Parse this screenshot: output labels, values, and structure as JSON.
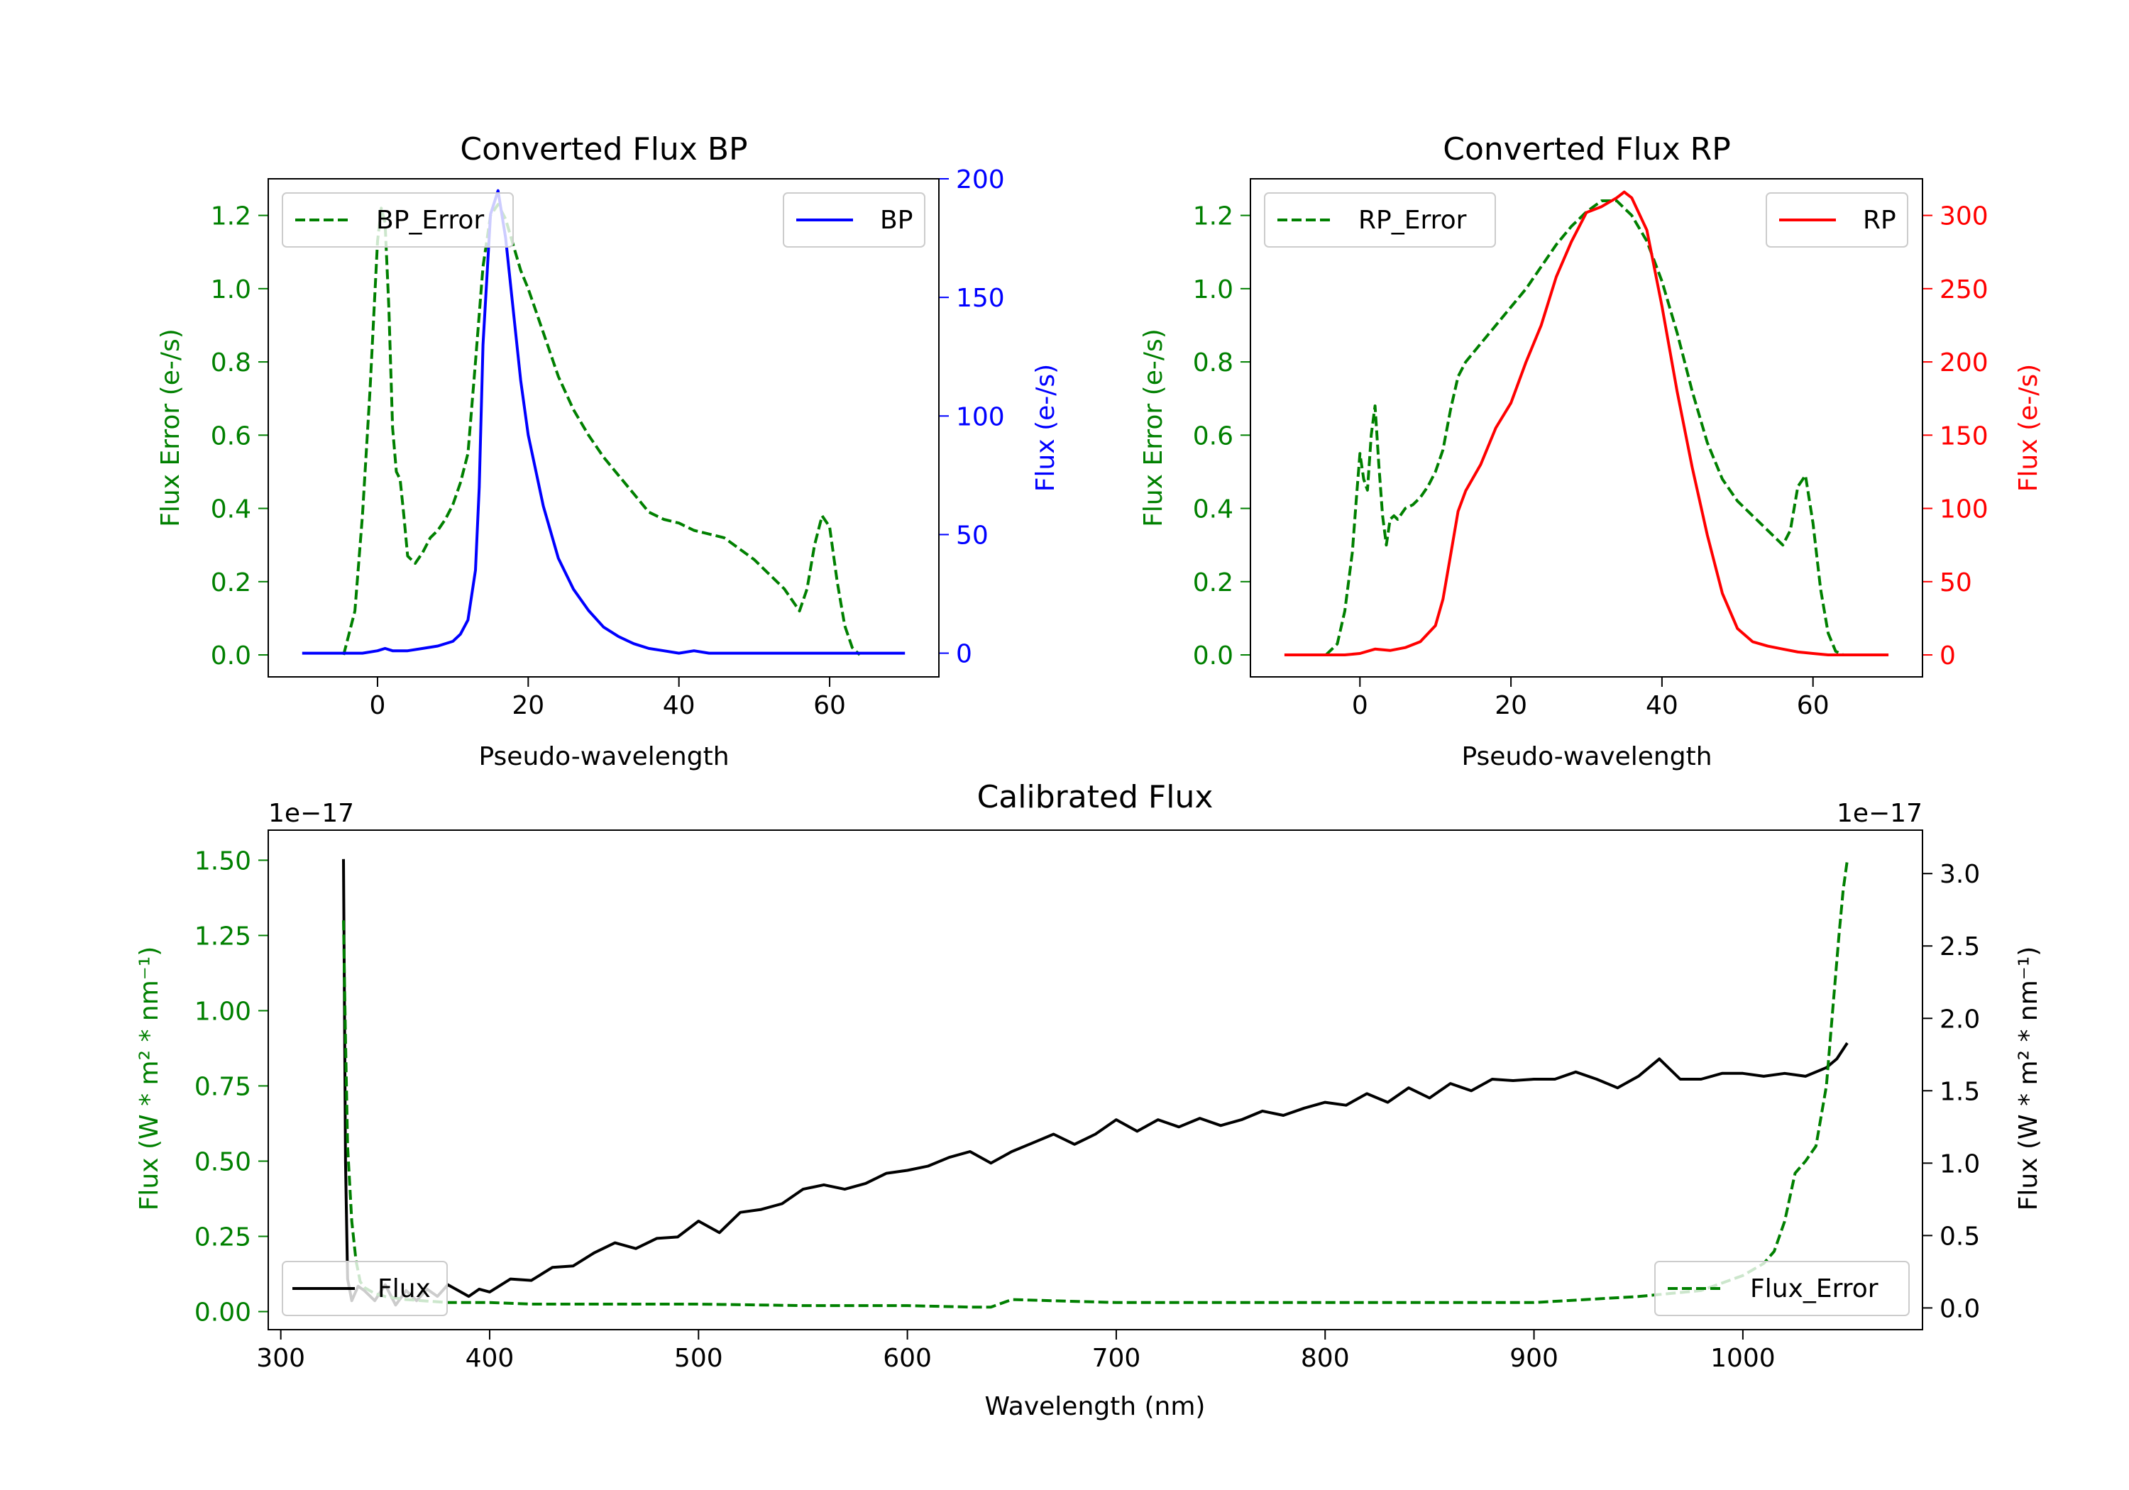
{
  "colors": {
    "green": "#008000",
    "blue": "#0000ff",
    "red": "#ff0000",
    "black": "#000000"
  },
  "chart_data": [
    {
      "type": "line",
      "title": "Converted Flux BP",
      "xlabel": "Pseudo-wavelength",
      "ylabel_left": "Flux Error (e-/s)",
      "ylabel_right": "Flux (e-/s)",
      "xlim": [
        -14.5,
        74.5
      ],
      "ylim_left": [
        -0.06,
        1.3
      ],
      "ylim_right": [
        -10,
        200
      ],
      "xticks": [
        0,
        20,
        40,
        60
      ],
      "yticks_left": [
        0.0,
        0.2,
        0.4,
        0.6,
        0.8,
        1.0,
        1.2
      ],
      "yticks_right": [
        0,
        50,
        100,
        150,
        200
      ],
      "grid": false,
      "series": [
        {
          "name": "BP_Error",
          "axis": "left",
          "style": "dashed",
          "color": "#008000",
          "legend_loc": "upper left",
          "x": [
            -4.5,
            -3,
            -2,
            -1,
            0,
            0.5,
            1,
            1.5,
            2,
            2.5,
            3,
            3.5,
            4,
            5,
            6,
            7,
            8,
            9,
            10,
            11,
            12,
            13,
            14,
            15,
            16,
            17,
            18,
            19,
            20,
            22,
            24,
            26,
            28,
            30,
            32,
            34,
            36,
            38,
            40,
            42,
            44,
            46,
            48,
            50,
            52,
            54,
            56,
            57,
            58,
            59,
            60,
            61,
            62,
            63,
            64
          ],
          "y": [
            0.0,
            0.12,
            0.38,
            0.72,
            1.13,
            1.22,
            1.18,
            0.95,
            0.62,
            0.5,
            0.48,
            0.38,
            0.27,
            0.25,
            0.28,
            0.32,
            0.34,
            0.37,
            0.41,
            0.47,
            0.55,
            0.8,
            1.06,
            1.2,
            1.23,
            1.19,
            1.12,
            1.05,
            1.0,
            0.88,
            0.76,
            0.67,
            0.6,
            0.54,
            0.49,
            0.44,
            0.39,
            0.37,
            0.36,
            0.34,
            0.33,
            0.32,
            0.29,
            0.26,
            0.22,
            0.18,
            0.12,
            0.18,
            0.3,
            0.38,
            0.35,
            0.2,
            0.08,
            0.02,
            0.0
          ]
        },
        {
          "name": "BP",
          "axis": "right",
          "style": "solid",
          "color": "#0000ff",
          "legend_loc": "upper right",
          "x": [
            -10,
            -5,
            -2,
            0,
            1,
            2,
            4,
            6,
            8,
            10,
            11,
            12,
            13,
            13.5,
            14,
            15,
            16,
            17,
            18,
            19,
            20,
            22,
            24,
            26,
            28,
            30,
            32,
            34,
            36,
            38,
            40,
            42,
            44,
            46,
            48,
            50,
            55,
            60,
            65,
            70
          ],
          "y": [
            0,
            0,
            0,
            1,
            2,
            1,
            1,
            2,
            3,
            5,
            8,
            14,
            35,
            70,
            130,
            185,
            195,
            175,
            145,
            115,
            92,
            62,
            40,
            27,
            18,
            11,
            7,
            4,
            2,
            1,
            0,
            1,
            0,
            0,
            0,
            0,
            0,
            0,
            0,
            0
          ]
        }
      ]
    },
    {
      "type": "line",
      "title": "Converted Flux RP",
      "xlabel": "Pseudo-wavelength",
      "ylabel_left": "Flux Error (e-/s)",
      "ylabel_right": "Flux (e-/s)",
      "xlim": [
        -14.5,
        74.5
      ],
      "ylim_left": [
        -0.06,
        1.3
      ],
      "ylim_right": [
        -15,
        325
      ],
      "xticks": [
        0,
        20,
        40,
        60
      ],
      "yticks_left": [
        0.0,
        0.2,
        0.4,
        0.6,
        0.8,
        1.0,
        1.2
      ],
      "yticks_right": [
        0,
        50,
        100,
        150,
        200,
        250,
        300
      ],
      "grid": false,
      "series": [
        {
          "name": "RP_Error",
          "axis": "left",
          "style": "dashed",
          "color": "#008000",
          "legend_loc": "upper left",
          "x": [
            -4.5,
            -3,
            -2,
            -1,
            -0.5,
            0,
            0.5,
            1,
            1.5,
            2,
            2.5,
            3,
            3.5,
            4,
            4.5,
            5,
            6,
            7,
            8,
            9,
            10,
            11,
            12,
            13,
            14,
            16,
            18,
            20,
            22,
            24,
            26,
            28,
            30,
            32,
            34,
            36,
            38,
            40,
            42,
            44,
            46,
            48,
            50,
            52,
            54,
            56,
            57,
            58,
            59,
            60,
            61,
            62,
            63,
            64
          ],
          "y": [
            0.0,
            0.03,
            0.12,
            0.28,
            0.42,
            0.55,
            0.48,
            0.45,
            0.6,
            0.68,
            0.52,
            0.38,
            0.3,
            0.37,
            0.38,
            0.37,
            0.4,
            0.41,
            0.43,
            0.46,
            0.5,
            0.56,
            0.67,
            0.76,
            0.8,
            0.85,
            0.9,
            0.95,
            1.0,
            1.06,
            1.12,
            1.17,
            1.21,
            1.24,
            1.24,
            1.2,
            1.13,
            1.02,
            0.88,
            0.72,
            0.58,
            0.48,
            0.42,
            0.38,
            0.34,
            0.3,
            0.34,
            0.46,
            0.49,
            0.36,
            0.18,
            0.06,
            0.01,
            0.0
          ]
        },
        {
          "name": "RP",
          "axis": "right",
          "style": "solid",
          "color": "#ff0000",
          "legend_loc": "upper right",
          "x": [
            -10,
            -5,
            -2,
            0,
            2,
            4,
            6,
            8,
            10,
            11,
            12,
            13,
            14,
            16,
            18,
            20,
            22,
            24,
            26,
            28,
            30,
            32,
            34,
            35,
            36,
            38,
            40,
            42,
            44,
            46,
            48,
            50,
            52,
            54,
            56,
            58,
            60,
            62,
            65,
            70
          ],
          "y": [
            0,
            0,
            0,
            1,
            4,
            3,
            5,
            9,
            20,
            38,
            68,
            98,
            112,
            130,
            155,
            172,
            200,
            225,
            258,
            282,
            302,
            306,
            312,
            316,
            312,
            290,
            238,
            180,
            128,
            82,
            42,
            18,
            9,
            6,
            4,
            2,
            1,
            0,
            0,
            0
          ]
        }
      ]
    },
    {
      "type": "line",
      "title": "Calibrated Flux",
      "xlabel": "Wavelength (nm)",
      "ylabel_left": "Flux (W * m² * nm⁻¹)",
      "ylabel_right": "Flux (W * m² * nm⁻¹)",
      "offset_left": "1e−17",
      "offset_right": "1e−17",
      "xlim": [
        294,
        1086
      ],
      "ylim_left": [
        -0.06,
        1.6
      ],
      "ylim_right": [
        -0.15,
        3.3
      ],
      "xticks": [
        300,
        400,
        500,
        600,
        700,
        800,
        900,
        1000
      ],
      "yticks_left": [
        0.0,
        0.25,
        0.5,
        0.75,
        1.0,
        1.25,
        1.5
      ],
      "yticks_right": [
        0.0,
        0.5,
        1.0,
        1.5,
        2.0,
        2.5,
        3.0
      ],
      "ytick_labels_left": [
        "0.00",
        "0.25",
        "0.50",
        "0.75",
        "1.00",
        "1.25",
        "1.50"
      ],
      "ytick_labels_right": [
        "0.0",
        "0.5",
        "1.0",
        "1.5",
        "2.0",
        "2.5",
        "3.0"
      ],
      "grid": false,
      "series": [
        {
          "name": "Flux",
          "axis": "right",
          "style": "solid",
          "color": "#000000",
          "legend_loc": "lower left",
          "x": [
            330,
            331,
            332,
            334,
            337,
            340,
            345,
            350,
            355,
            360,
            365,
            370,
            375,
            380,
            385,
            390,
            395,
            400,
            410,
            420,
            430,
            440,
            450,
            460,
            470,
            480,
            490,
            500,
            510,
            520,
            530,
            540,
            550,
            560,
            570,
            580,
            590,
            600,
            610,
            620,
            630,
            640,
            650,
            660,
            670,
            680,
            690,
            700,
            710,
            720,
            730,
            740,
            750,
            760,
            770,
            780,
            790,
            800,
            810,
            820,
            830,
            840,
            850,
            860,
            870,
            880,
            890,
            900,
            910,
            920,
            930,
            940,
            950,
            960,
            970,
            980,
            990,
            1000,
            1010,
            1020,
            1030,
            1040,
            1045,
            1050
          ],
          "y": [
            3.1,
            1.0,
            0.2,
            0.05,
            0.15,
            0.12,
            0.05,
            0.16,
            0.02,
            0.12,
            0.05,
            0.13,
            0.08,
            0.16,
            0.12,
            0.08,
            0.13,
            0.11,
            0.2,
            0.19,
            0.28,
            0.29,
            0.38,
            0.45,
            0.41,
            0.48,
            0.49,
            0.6,
            0.52,
            0.66,
            0.68,
            0.72,
            0.82,
            0.85,
            0.82,
            0.86,
            0.93,
            0.95,
            0.98,
            1.04,
            1.08,
            1.0,
            1.08,
            1.14,
            1.2,
            1.13,
            1.2,
            1.3,
            1.22,
            1.3,
            1.25,
            1.31,
            1.26,
            1.3,
            1.36,
            1.33,
            1.38,
            1.42,
            1.4,
            1.48,
            1.42,
            1.52,
            1.45,
            1.55,
            1.5,
            1.58,
            1.57,
            1.58,
            1.58,
            1.63,
            1.58,
            1.52,
            1.6,
            1.72,
            1.58,
            1.58,
            1.62,
            1.62,
            1.6,
            1.62,
            1.6,
            1.66,
            1.72,
            1.83
          ]
        },
        {
          "name": "Flux_Error",
          "axis": "left",
          "style": "dashed",
          "color": "#008000",
          "legend_loc": "lower right",
          "x": [
            330,
            331,
            332,
            334,
            336,
            338,
            340,
            345,
            350,
            360,
            370,
            380,
            390,
            400,
            420,
            450,
            500,
            550,
            600,
            630,
            640,
            650,
            700,
            800,
            900,
            950,
            980,
            1000,
            1010,
            1015,
            1020,
            1025,
            1030,
            1035,
            1040,
            1043,
            1046,
            1048,
            1050
          ],
          "y": [
            1.3,
            0.9,
            0.55,
            0.3,
            0.17,
            0.1,
            0.08,
            0.06,
            0.05,
            0.04,
            0.035,
            0.03,
            0.03,
            0.03,
            0.025,
            0.025,
            0.025,
            0.02,
            0.02,
            0.015,
            0.015,
            0.04,
            0.03,
            0.03,
            0.03,
            0.05,
            0.07,
            0.12,
            0.16,
            0.2,
            0.3,
            0.46,
            0.5,
            0.55,
            0.75,
            1.0,
            1.25,
            1.4,
            1.5
          ]
        }
      ]
    }
  ]
}
